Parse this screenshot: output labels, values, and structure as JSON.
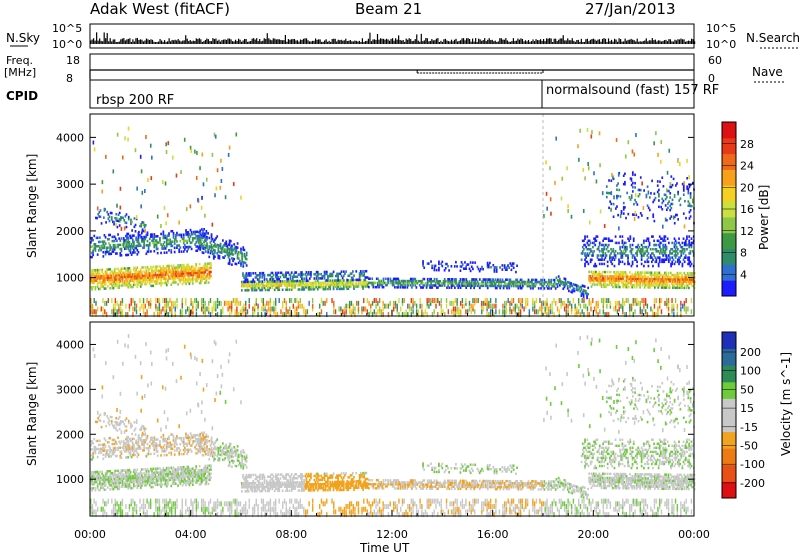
{
  "header": {
    "station": "Adak West (fitACF)",
    "beam": "Beam 21",
    "date": "27/Jan/2013"
  },
  "nsky_panel": {
    "left_label": "N.Sky",
    "right_label": "N.Search",
    "tick_top": "10^5",
    "tick_bottom": "10^0"
  },
  "freq_panel": {
    "left_label_line1": "Freq.",
    "left_label_line2": "[MHz]",
    "right_label": "Nave",
    "left_ticks": [
      "18",
      "8"
    ],
    "right_ticks": [
      "60",
      "0"
    ]
  },
  "cpid_panel": {
    "label": "CPID",
    "programs": [
      {
        "name": "rbsp 200 RF",
        "start_hour": 0,
        "end_hour": 18
      },
      {
        "name": "normalsound (fast) 157 RF",
        "start_hour": 18,
        "end_hour": 24
      }
    ]
  },
  "chart_data": [
    {
      "type": "heatmap",
      "name": "power",
      "ylabel": "Slant Range [km]",
      "xlabel": "",
      "ylim": [
        180,
        4500
      ],
      "yticks": [
        1000,
        2000,
        3000,
        4000
      ],
      "xlim": [
        0,
        24
      ],
      "colorbar": {
        "label": "Power [dB]",
        "ticks": [
          4,
          8,
          12,
          16,
          20,
          24,
          28
        ],
        "range": [
          0,
          32
        ],
        "colors": [
          "#1c1cff",
          "#2e6fd0",
          "#2f8c6a",
          "#3d9944",
          "#8fc846",
          "#c9e040",
          "#f5d020",
          "#f7a11a",
          "#ef6a18",
          "#e83a17",
          "#dd1111"
        ]
      }
    },
    {
      "type": "heatmap",
      "name": "velocity",
      "ylabel": "Slant Range [km]",
      "xlabel": "Time UT",
      "ylim": [
        180,
        4500
      ],
      "yticks": [
        1000,
        2000,
        3000,
        4000
      ],
      "xlim": [
        0,
        24
      ],
      "colorbar": {
        "label": "Velocity [m s^-1]",
        "ticks": [
          "200",
          "100",
          "50",
          "15",
          "-15",
          "-50",
          "-100",
          "-200"
        ],
        "colors": [
          "#1f2fb8",
          "#2c6a9a",
          "#2e8b57",
          "#6ccc3a",
          "#c8c8c8",
          "#c8c8c8",
          "#f2a31f",
          "#ee7a14",
          "#e85016",
          "#dd1111"
        ]
      }
    }
  ],
  "time_axis": {
    "label": "Time UT",
    "tick_labels": [
      "00:00",
      "04:00",
      "08:00",
      "12:00",
      "16:00",
      "20:00",
      "00:00"
    ],
    "tick_hours": [
      0,
      4,
      8,
      12,
      16,
      20,
      24
    ]
  }
}
